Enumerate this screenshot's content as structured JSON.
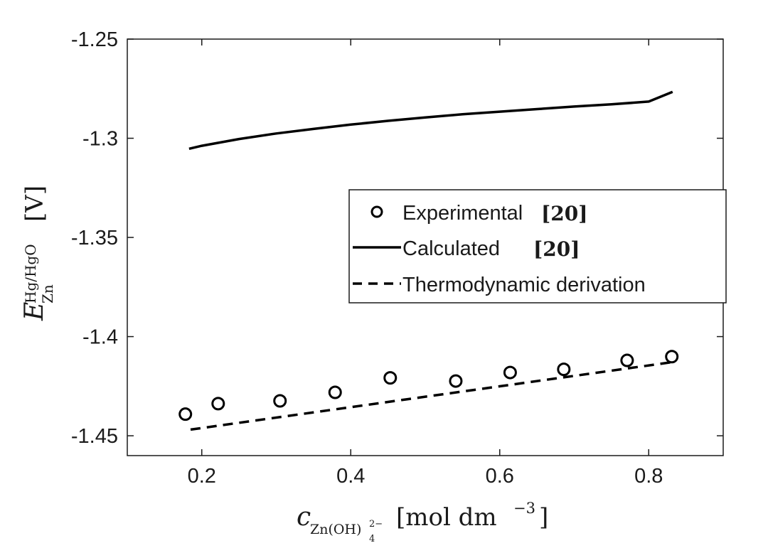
{
  "chart_data": {
    "type": "line",
    "title": "",
    "xlim": [
      0.1,
      0.9
    ],
    "ylim": [
      -1.46,
      -1.25
    ],
    "x_ticks": [
      0.2,
      0.4,
      0.6,
      0.8
    ],
    "x_tick_labels": [
      "0.2",
      "0.4",
      "0.6",
      "0.8"
    ],
    "y_ticks": [
      -1.25,
      -1.3,
      -1.35,
      -1.4,
      -1.45
    ],
    "y_tick_labels": [
      "-1.25",
      "-1.3",
      "-1.35",
      "-1.4",
      "-1.45"
    ],
    "grid": false,
    "legend_position": "right",
    "xlabel": {
      "symbol": "c",
      "subscript": "Zn(OH)",
      "sub_subscript": "4",
      "sub_superscript": "2−",
      "units": "[mol dm",
      "units_exp": "−3",
      "units_close": "]"
    },
    "ylabel": {
      "symbol": "E",
      "subscript": "Zn",
      "superscript": "Hg/HgO",
      "units": "[V]"
    },
    "series": [
      {
        "name": "Experimental",
        "ref": "[20]",
        "style": "markers",
        "x": [
          0.178,
          0.222,
          0.305,
          0.379,
          0.453,
          0.541,
          0.614,
          0.686,
          0.771,
          0.831
        ],
        "y": [
          -1.4391,
          -1.4338,
          -1.4324,
          -1.4281,
          -1.4208,
          -1.4224,
          -1.4181,
          -1.4165,
          -1.412,
          -1.4101
        ]
      },
      {
        "name": "Calculated",
        "ref": "[20]",
        "style": "solid",
        "x": [
          0.183,
          0.2,
          0.25,
          0.3,
          0.35,
          0.4,
          0.45,
          0.5,
          0.55,
          0.6,
          0.65,
          0.7,
          0.75,
          0.8,
          0.832
        ],
        "y": [
          -1.3053,
          -1.3038,
          -1.3004,
          -1.2976,
          -1.2953,
          -1.2931,
          -1.2912,
          -1.2895,
          -1.2879,
          -1.2866,
          -1.2853,
          -1.284,
          -1.2829,
          -1.2815,
          -1.2766
        ]
      },
      {
        "name": "Thermodynamic derivation",
        "ref": "",
        "style": "dashed",
        "x": [
          0.185,
          0.831
        ],
        "y": [
          -1.4469,
          -1.4129
        ]
      }
    ]
  }
}
